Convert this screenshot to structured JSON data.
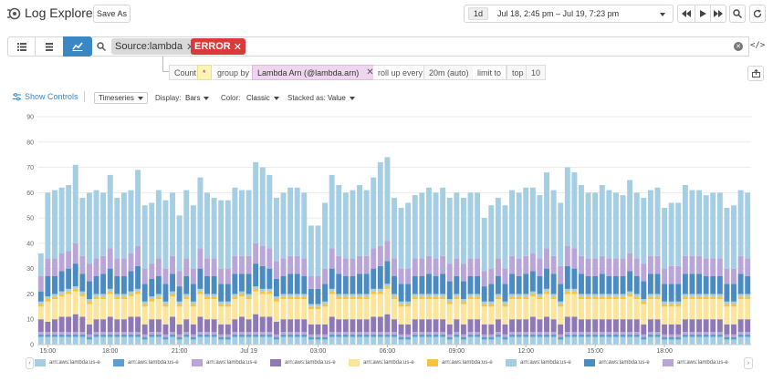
{
  "header": {
    "title": "Log Explorer",
    "save_as": "Save As",
    "period_badge": "1d",
    "time_range": "Jul 18, 2:45 pm – Jul 19, 7:23 pm"
  },
  "search": {
    "tags": [
      {
        "label": "Source:lambda",
        "color": "#d9d9d9"
      },
      {
        "label": "ERROR",
        "color": "#d93a3a"
      }
    ]
  },
  "query": {
    "count": "Count",
    "star": "*",
    "group_by": "group by",
    "group_field": "Lambda Arn (@lambda.arn)",
    "roll_up": "roll up every",
    "roll_value": "20m (auto)",
    "limit_to": "limit to",
    "top": "top",
    "limit_value": "10"
  },
  "controls": {
    "show_controls": "Show Controls",
    "viz": "Timeseries",
    "display_label": "Display:",
    "display_value": "Bars",
    "color_label": "Color:",
    "color_value": "Classic",
    "stacked_label": "Stacked as:",
    "stacked_value": "Value"
  },
  "chart_data": {
    "type": "bar",
    "stacked": true,
    "ylim": [
      0,
      90
    ],
    "y_ticks": [
      "0",
      "10",
      "20",
      "30",
      "40",
      "50",
      "60",
      "70",
      "80",
      "90"
    ],
    "x_ticks": [
      {
        "label": "15:00",
        "index": 1
      },
      {
        "label": "18:00",
        "index": 10
      },
      {
        "label": "21:00",
        "index": 20
      },
      {
        "label": "Jul 19",
        "index": 30
      },
      {
        "label": "03:00",
        "index": 40
      },
      {
        "label": "06:00",
        "index": 50
      },
      {
        "label": "09:00",
        "index": 60
      },
      {
        "label": "12:00",
        "index": 70
      },
      {
        "label": "15:00",
        "index": 80
      },
      {
        "label": "18:00",
        "index": 90
      }
    ],
    "grid": true,
    "totals": [
      36,
      60,
      61,
      62,
      63,
      71,
      58,
      60,
      61,
      60,
      67,
      58,
      60,
      61,
      69,
      55,
      56,
      61,
      57,
      60,
      51,
      61,
      55,
      66,
      60,
      58,
      57,
      57,
      62,
      60,
      61,
      72,
      71,
      68,
      58,
      60,
      62,
      62,
      59,
      47,
      47,
      55,
      68,
      64,
      60,
      61,
      64,
      62,
      66,
      72,
      74,
      58,
      53,
      56,
      59,
      60,
      62,
      60,
      62,
      58,
      60,
      58,
      60,
      60,
      50,
      55,
      58,
      55,
      61,
      60,
      62,
      62,
      59,
      68,
      61,
      57,
      71,
      69,
      64,
      60,
      60,
      63,
      61,
      60,
      59,
      65,
      60,
      58,
      61,
      63,
      54,
      57,
      57,
      64,
      61,
      61,
      59,
      60,
      60,
      55,
      56,
      61,
      60
    ],
    "series": [
      {
        "name": "arn:aws:lambda:us-e",
        "color": "#a6cee3",
        "values": [
          3,
          3,
          3,
          3,
          3,
          3,
          3,
          2,
          3,
          3,
          3,
          3,
          3,
          3,
          3,
          2,
          3,
          3,
          2,
          3,
          2,
          3,
          2,
          3,
          3,
          3,
          2,
          2,
          3,
          3,
          3,
          3,
          3,
          3,
          2,
          3,
          3,
          3,
          3,
          2,
          2,
          2,
          3,
          3,
          3,
          3,
          3,
          3,
          3,
          3,
          3,
          3,
          2,
          2,
          3,
          3,
          3,
          3,
          3,
          2,
          3,
          2,
          3,
          3,
          2,
          2,
          3,
          2,
          3,
          3,
          3,
          3,
          3,
          3,
          3,
          2,
          3,
          3,
          3,
          3,
          3,
          3,
          3,
          3,
          3,
          3,
          3,
          2,
          3,
          3,
          2,
          2,
          2,
          3,
          3,
          3,
          3,
          3,
          3,
          2,
          2,
          3,
          3
        ]
      },
      {
        "name": "arn:aws:lambda:us-e",
        "color": "#5a9fd0",
        "values": [
          1,
          1,
          1,
          1,
          1,
          1,
          1,
          1,
          1,
          1,
          1,
          1,
          1,
          1,
          1,
          1,
          1,
          1,
          1,
          1,
          1,
          1,
          1,
          1,
          1,
          1,
          1,
          1,
          1,
          1,
          1,
          1,
          1,
          1,
          1,
          1,
          1,
          1,
          1,
          1,
          1,
          1,
          1,
          1,
          1,
          1,
          1,
          1,
          1,
          1,
          1,
          1,
          1,
          1,
          1,
          1,
          1,
          1,
          1,
          1,
          1,
          1,
          1,
          1,
          1,
          1,
          1,
          1,
          1,
          1,
          1,
          1,
          1,
          1,
          1,
          1,
          1,
          1,
          1,
          1,
          1,
          1,
          1,
          1,
          1,
          1,
          1,
          1,
          1,
          1,
          1,
          1,
          1,
          1,
          1,
          1,
          1,
          1,
          1,
          1,
          1,
          1,
          1
        ]
      },
      {
        "name": "arn:aws:lambda:us-e",
        "color": "#b9a6d6",
        "values": [
          1,
          1,
          1,
          1,
          1,
          1,
          1,
          1,
          1,
          1,
          1,
          1,
          1,
          1,
          1,
          1,
          1,
          1,
          1,
          1,
          1,
          1,
          1,
          1,
          1,
          1,
          1,
          1,
          1,
          1,
          1,
          1,
          1,
          1,
          1,
          1,
          1,
          1,
          1,
          1,
          1,
          1,
          1,
          1,
          1,
          1,
          1,
          1,
          1,
          1,
          1,
          1,
          1,
          1,
          1,
          1,
          1,
          1,
          1,
          1,
          1,
          1,
          1,
          1,
          1,
          1,
          1,
          1,
          1,
          1,
          1,
          1,
          1,
          1,
          1,
          1,
          1,
          1,
          1,
          1,
          1,
          1,
          1,
          1,
          1,
          1,
          1,
          1,
          1,
          1,
          1,
          1,
          1,
          1,
          1,
          1,
          1,
          1,
          1,
          1,
          1,
          1,
          1
        ]
      },
      {
        "name": "arn:aws:lambda:us-e",
        "color": "#8e78b5",
        "values": [
          5,
          4,
          5,
          6,
          6,
          7,
          6,
          4,
          5,
          5,
          6,
          5,
          5,
          6,
          6,
          4,
          5,
          5,
          4,
          6,
          4,
          5,
          4,
          6,
          5,
          5,
          4,
          4,
          5,
          6,
          5,
          7,
          6,
          6,
          5,
          5,
          5,
          5,
          5,
          4,
          4,
          4,
          6,
          5,
          5,
          5,
          5,
          5,
          6,
          6,
          7,
          5,
          4,
          4,
          5,
          5,
          5,
          5,
          5,
          4,
          5,
          4,
          5,
          5,
          4,
          4,
          5,
          4,
          5,
          5,
          5,
          6,
          5,
          6,
          5,
          4,
          6,
          6,
          5,
          5,
          5,
          5,
          5,
          5,
          5,
          5,
          5,
          4,
          5,
          5,
          4,
          4,
          4,
          5,
          5,
          5,
          5,
          5,
          5,
          4,
          4,
          5,
          5
        ]
      },
      {
        "name": "arn:aws:lambda:us-e",
        "color": "#fbe59a",
        "values": [
          5,
          8,
          8,
          8,
          9,
          9,
          8,
          8,
          8,
          8,
          9,
          8,
          8,
          8,
          9,
          7,
          7,
          8,
          7,
          8,
          7,
          8,
          7,
          9,
          8,
          8,
          7,
          7,
          8,
          8,
          8,
          9,
          9,
          9,
          8,
          8,
          8,
          8,
          8,
          6,
          6,
          7,
          9,
          8,
          8,
          8,
          8,
          8,
          9,
          9,
          10,
          8,
          7,
          7,
          8,
          8,
          8,
          8,
          8,
          8,
          8,
          8,
          8,
          8,
          7,
          7,
          8,
          7,
          8,
          8,
          8,
          8,
          8,
          9,
          8,
          7,
          9,
          9,
          8,
          8,
          8,
          8,
          8,
          8,
          8,
          9,
          8,
          8,
          8,
          8,
          7,
          7,
          7,
          8,
          8,
          8,
          8,
          8,
          8,
          7,
          7,
          8,
          8
        ]
      },
      {
        "name": "arn:aws:lambda:us-e",
        "color": "#f5c342",
        "values": [
          1,
          1,
          1,
          1,
          1,
          1,
          1,
          1,
          1,
          1,
          1,
          1,
          1,
          1,
          1,
          1,
          1,
          1,
          1,
          1,
          1,
          1,
          1,
          1,
          1,
          1,
          1,
          1,
          1,
          1,
          1,
          1,
          1,
          1,
          1,
          1,
          1,
          1,
          1,
          1,
          1,
          1,
          1,
          1,
          1,
          1,
          1,
          1,
          1,
          1,
          1,
          1,
          1,
          1,
          1,
          1,
          1,
          1,
          1,
          1,
          1,
          1,
          1,
          1,
          1,
          1,
          1,
          1,
          1,
          1,
          1,
          1,
          1,
          1,
          1,
          1,
          1,
          1,
          1,
          1,
          1,
          1,
          1,
          1,
          1,
          1,
          1,
          1,
          1,
          1,
          1,
          1,
          1,
          1,
          1,
          1,
          1,
          1,
          1,
          1,
          1,
          1,
          1
        ]
      },
      {
        "name": "arn:aws:lambda:us-e",
        "color": "#a6cee3",
        "values": [
          1,
          1,
          1,
          1,
          1,
          1,
          1,
          1,
          1,
          1,
          1,
          1,
          1,
          1,
          1,
          1,
          1,
          1,
          1,
          1,
          1,
          1,
          1,
          1,
          1,
          1,
          1,
          1,
          1,
          1,
          1,
          1,
          1,
          1,
          1,
          1,
          1,
          1,
          1,
          1,
          1,
          1,
          1,
          1,
          1,
          1,
          1,
          1,
          1,
          1,
          1,
          1,
          1,
          1,
          1,
          1,
          1,
          1,
          1,
          1,
          1,
          1,
          1,
          1,
          1,
          1,
          1,
          1,
          1,
          1,
          1,
          1,
          1,
          1,
          1,
          1,
          1,
          1,
          1,
          1,
          1,
          1,
          1,
          1,
          1,
          1,
          1,
          1,
          1,
          1,
          1,
          1,
          1,
          1,
          1,
          1,
          1,
          1,
          1,
          1,
          1,
          1,
          1
        ]
      },
      {
        "name": "arn:aws:lambda:us-e",
        "color": "#4a8cc2",
        "values": [
          4,
          8,
          7,
          8,
          8,
          9,
          7,
          7,
          7,
          8,
          8,
          7,
          7,
          8,
          9,
          7,
          7,
          7,
          7,
          7,
          6,
          7,
          7,
          8,
          7,
          7,
          7,
          7,
          8,
          7,
          8,
          9,
          9,
          8,
          7,
          7,
          8,
          8,
          7,
          6,
          6,
          7,
          8,
          8,
          7,
          7,
          8,
          8,
          8,
          9,
          9,
          7,
          7,
          7,
          7,
          7,
          8,
          7,
          8,
          7,
          7,
          7,
          7,
          7,
          6,
          7,
          7,
          7,
          8,
          7,
          8,
          8,
          7,
          8,
          8,
          7,
          9,
          8,
          8,
          7,
          7,
          8,
          7,
          7,
          7,
          8,
          7,
          7,
          8,
          8,
          7,
          7,
          7,
          8,
          8,
          8,
          7,
          7,
          7,
          7,
          7,
          8,
          7
        ]
      },
      {
        "name": "arn:aws:lambda:us-e",
        "color": "#b9a6d6",
        "values": [
          6,
          7,
          7,
          7,
          7,
          8,
          7,
          7,
          7,
          7,
          8,
          7,
          7,
          7,
          8,
          6,
          6,
          7,
          6,
          7,
          6,
          7,
          6,
          8,
          7,
          7,
          6,
          6,
          7,
          7,
          7,
          8,
          8,
          8,
          7,
          7,
          7,
          7,
          7,
          5,
          5,
          6,
          8,
          7,
          7,
          7,
          7,
          7,
          8,
          8,
          8,
          7,
          6,
          6,
          7,
          7,
          7,
          7,
          7,
          7,
          7,
          7,
          7,
          7,
          6,
          6,
          7,
          6,
          7,
          7,
          7,
          7,
          7,
          8,
          7,
          7,
          8,
          8,
          7,
          7,
          7,
          7,
          7,
          7,
          7,
          7,
          7,
          7,
          7,
          7,
          6,
          7,
          7,
          7,
          7,
          7,
          7,
          7,
          7,
          6,
          6,
          7,
          7
        ]
      },
      {
        "name": "arn:aws:lambda:us-e",
        "color": "#a6cee3",
        "values": [
          9,
          26,
          27,
          26,
          26,
          31,
          23,
          28,
          27,
          25,
          29,
          24,
          26,
          25,
          30,
          25,
          24,
          27,
          27,
          25,
          22,
          27,
          25,
          28,
          26,
          24,
          27,
          27,
          27,
          26,
          26,
          32,
          31,
          29,
          25,
          26,
          27,
          27,
          26,
          20,
          20,
          26,
          29,
          28,
          26,
          27,
          28,
          26,
          28,
          33,
          33,
          24,
          24,
          26,
          25,
          26,
          27,
          26,
          27,
          26,
          26,
          26,
          26,
          26,
          21,
          25,
          24,
          25,
          26,
          26,
          27,
          26,
          25,
          30,
          26,
          25,
          31,
          30,
          28,
          26,
          26,
          28,
          27,
          26,
          25,
          29,
          26,
          26,
          26,
          27,
          24,
          25,
          25,
          28,
          26,
          26,
          25,
          26,
          26,
          24,
          25,
          26,
          26
        ]
      }
    ]
  },
  "legend": {
    "entries": [
      {
        "label": "arn:aws:lambda:us-e",
        "color": "#a6cee3"
      },
      {
        "label": "arn:aws:lambda:us-e",
        "color": "#5a9fd0"
      },
      {
        "label": "arn:aws:lambda:us-e",
        "color": "#b9a6d6"
      },
      {
        "label": "arn:aws:lambda:us-e",
        "color": "#8e78b5"
      },
      {
        "label": "arn:aws:lambda:us-e",
        "color": "#fbe59a"
      },
      {
        "label": "arn:aws:lambda:us-e",
        "color": "#f5c342"
      },
      {
        "label": "arn:aws:lambda:us-e",
        "color": "#a6cee3"
      },
      {
        "label": "arn:aws:lambda:us-e",
        "color": "#4a8cc2"
      },
      {
        "label": "arn:aws:lambda:us-e",
        "color": "#b9a6d6"
      }
    ]
  }
}
